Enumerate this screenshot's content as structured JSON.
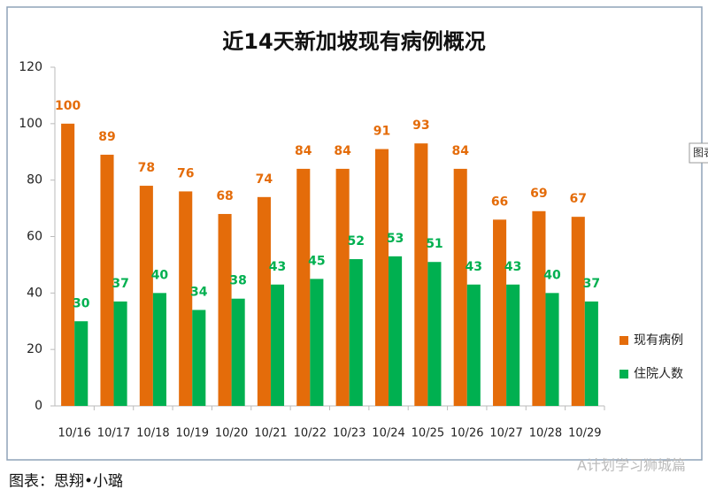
{
  "chart_data": {
    "type": "bar",
    "title": "近14天新加坡现有病例概况",
    "categories": [
      "10/16",
      "10/17",
      "10/18",
      "10/19",
      "10/20",
      "10/21",
      "10/22",
      "10/23",
      "10/24",
      "10/25",
      "10/26",
      "10/27",
      "10/28",
      "10/29"
    ],
    "series": [
      {
        "name": "现有病例",
        "color": "#e46c0a",
        "values": [
          100,
          89,
          78,
          76,
          68,
          74,
          84,
          84,
          91,
          93,
          84,
          66,
          69,
          67
        ]
      },
      {
        "name": "住院人数",
        "color": "#00b050",
        "values": [
          30,
          37,
          40,
          34,
          38,
          43,
          45,
          52,
          53,
          51,
          43,
          43,
          40,
          37
        ]
      }
    ],
    "ylim": [
      0,
      120
    ],
    "yticks": [
      0,
      20,
      40,
      60,
      80,
      100,
      120
    ],
    "grid": false,
    "legend": "right"
  },
  "caption": "图表：思翔•小璐",
  "side_tag": "图表",
  "watermark": "A计划学习狮城篇"
}
